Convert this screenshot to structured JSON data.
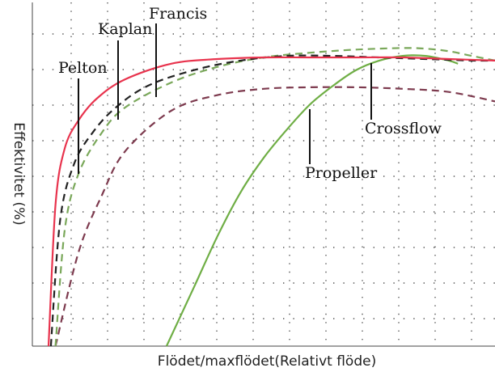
{
  "chart_data": {
    "type": "line",
    "title": "",
    "xlabel": "Flödet/maxflödet(Relativt flöde)",
    "ylabel": "Effektivitet (%)",
    "xlim": [
      0,
      1
    ],
    "ylim": [
      0,
      1
    ],
    "grid": true,
    "series": [
      {
        "name": "Pelton",
        "color": "#e8334d",
        "style": "solid",
        "x": [
          0.035,
          0.05,
          0.07,
          0.1,
          0.14,
          0.2,
          0.3,
          0.4,
          0.5,
          0.6,
          0.7,
          0.8,
          0.9,
          1.0
        ],
        "y": [
          0.0,
          0.45,
          0.63,
          0.72,
          0.79,
          0.85,
          0.9,
          0.915,
          0.92,
          0.92,
          0.92,
          0.92,
          0.915,
          0.91
        ]
      },
      {
        "name": "Kaplan",
        "color": "#222222",
        "style": "dashed",
        "x": [
          0.04,
          0.06,
          0.09,
          0.13,
          0.18,
          0.25,
          0.35,
          0.45,
          0.55,
          0.65,
          0.75,
          0.85,
          0.95,
          1.0
        ],
        "y": [
          0.0,
          0.4,
          0.58,
          0.68,
          0.76,
          0.83,
          0.88,
          0.91,
          0.925,
          0.925,
          0.92,
          0.915,
          0.91,
          0.91
        ]
      },
      {
        "name": "Francis",
        "color": "#7aa85a",
        "style": "dashed",
        "x": [
          0.05,
          0.07,
          0.1,
          0.15,
          0.2,
          0.3,
          0.4,
          0.5,
          0.6,
          0.7,
          0.8,
          0.85,
          0.9,
          0.95,
          1.0
        ],
        "y": [
          0.0,
          0.37,
          0.55,
          0.68,
          0.76,
          0.84,
          0.89,
          0.92,
          0.935,
          0.945,
          0.95,
          0.948,
          0.94,
          0.925,
          0.91
        ]
      },
      {
        "name": "Crossflow",
        "color": "#7d3a4e",
        "style": "dashed",
        "x": [
          0.05,
          0.1,
          0.15,
          0.2,
          0.3,
          0.4,
          0.5,
          0.6,
          0.7,
          0.8,
          0.9,
          1.0
        ],
        "y": [
          0.0,
          0.3,
          0.48,
          0.62,
          0.75,
          0.8,
          0.82,
          0.825,
          0.825,
          0.82,
          0.81,
          0.78
        ]
      },
      {
        "name": "Propeller",
        "color": "#6fae45",
        "style": "solid",
        "x": [
          0.29,
          0.35,
          0.4,
          0.45,
          0.5,
          0.55,
          0.6,
          0.65,
          0.7,
          0.75,
          0.8,
          0.85,
          0.9,
          0.92
        ],
        "y": [
          0.0,
          0.19,
          0.35,
          0.49,
          0.6,
          0.69,
          0.77,
          0.83,
          0.88,
          0.91,
          0.925,
          0.925,
          0.91,
          0.9
        ]
      }
    ]
  }
}
